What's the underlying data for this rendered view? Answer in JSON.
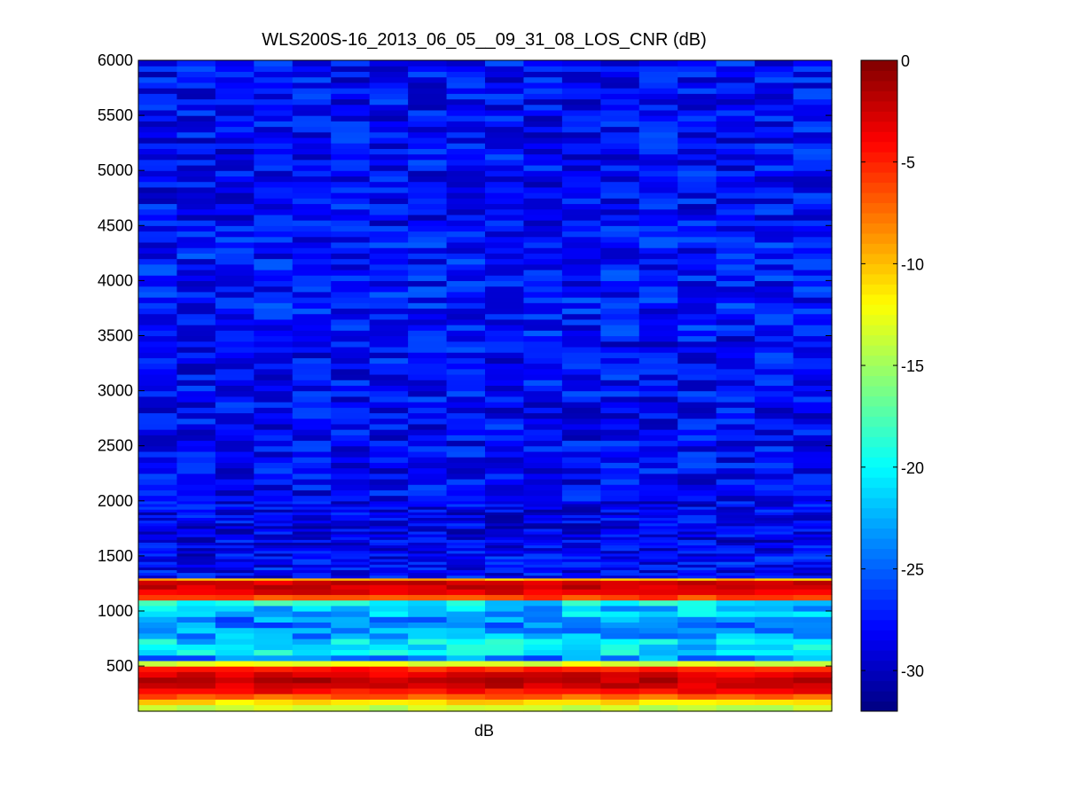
{
  "chart_data": {
    "type": "heatmap",
    "title": "WLS200S-16_2013_06_05__09_31_08_LOS_CNR (dB)",
    "xlabel": "dB",
    "ylabel": "",
    "ylim": [
      90,
      6000
    ],
    "y_ticks": [
      500,
      1000,
      1500,
      2000,
      2500,
      3000,
      3500,
      4000,
      4500,
      5000,
      5500,
      6000
    ],
    "columns": 18,
    "colorbar": {
      "colormap": "jet",
      "clim": [
        -32,
        0
      ],
      "ticks": [
        0,
        -5,
        -10,
        -15,
        -20,
        -25,
        -30
      ]
    },
    "profile": [
      {
        "range": [
          90,
          150
        ],
        "value": -14
      },
      {
        "range": [
          150,
          200
        ],
        "value": -11
      },
      {
        "range": [
          200,
          250
        ],
        "value": -7
      },
      {
        "range": [
          250,
          300
        ],
        "value": -4
      },
      {
        "range": [
          300,
          350
        ],
        "value": -2.5
      },
      {
        "range": [
          350,
          400
        ],
        "value": -2
      },
      {
        "range": [
          400,
          450
        ],
        "value": -3
      },
      {
        "range": [
          450,
          500
        ],
        "value": -5
      },
      {
        "range": [
          500,
          550
        ],
        "value": -13
      },
      {
        "range": [
          550,
          600
        ],
        "value": -24
      },
      {
        "range": [
          600,
          650
        ],
        "value": -20
      },
      {
        "range": [
          650,
          750
        ],
        "value": -21
      },
      {
        "range": [
          750,
          850
        ],
        "value": -23
      },
      {
        "range": [
          850,
          950
        ],
        "value": -24
      },
      {
        "range": [
          950,
          1050
        ],
        "value": -22
      },
      {
        "range": [
          1050,
          1100
        ],
        "value": -20
      },
      {
        "range": [
          1100,
          1150
        ],
        "value": -6
      },
      {
        "range": [
          1150,
          1200
        ],
        "value": -3
      },
      {
        "range": [
          1200,
          1280
        ],
        "value": -2.5
      },
      {
        "range": [
          1280,
          1300
        ],
        "value": -10
      },
      {
        "range": [
          1300,
          1500
        ],
        "value": -28
      },
      {
        "range": [
          1500,
          2000
        ],
        "value": -28.5
      },
      {
        "range": [
          2000,
          2600
        ],
        "value": -28
      },
      {
        "range": [
          2600,
          3500
        ],
        "value": -28
      },
      {
        "range": [
          3500,
          4500
        ],
        "value": -27.5
      },
      {
        "range": [
          4500,
          6000
        ],
        "value": -28
      }
    ]
  }
}
